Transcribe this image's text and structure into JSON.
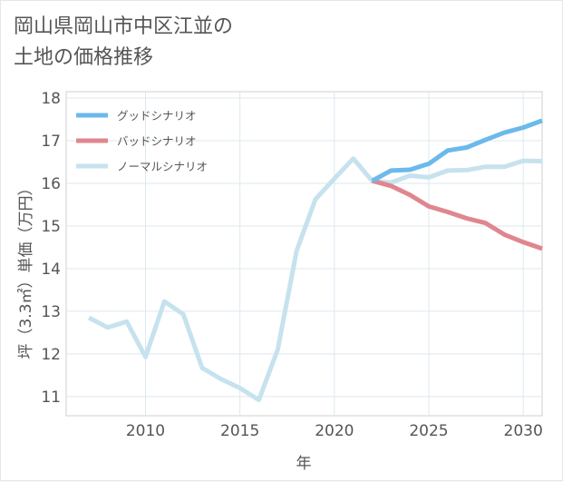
{
  "title_line1": "岡山県岡山市中区江並の",
  "title_line2": "土地の価格推移",
  "chart_data": {
    "type": "line",
    "xlabel": "年",
    "ylabel": "坪（3.3㎡）単価（万円）",
    "xlim": [
      2005.8,
      2031
    ],
    "ylim": [
      10.55,
      18.15
    ],
    "x_ticks": [
      2010,
      2015,
      2020,
      2025,
      2030
    ],
    "y_ticks": [
      11,
      12,
      13,
      14,
      15,
      16,
      17,
      18
    ],
    "grid": true,
    "legend_position": "top-left",
    "series": [
      {
        "name": "グッドシナリオ",
        "color": "#6cb9ec",
        "points": [
          [
            2022,
            16.06
          ],
          [
            2023,
            16.3
          ],
          [
            2024,
            16.32
          ],
          [
            2025,
            16.46
          ],
          [
            2026,
            16.77
          ],
          [
            2027,
            16.84
          ],
          [
            2028,
            17.02
          ],
          [
            2029,
            17.19
          ],
          [
            2030,
            17.31
          ],
          [
            2031,
            17.47
          ]
        ]
      },
      {
        "name": "バッドシナリオ",
        "color": "#e0868e",
        "points": [
          [
            2022,
            16.06
          ],
          [
            2023,
            15.94
          ],
          [
            2024,
            15.73
          ],
          [
            2025,
            15.46
          ],
          [
            2026,
            15.33
          ],
          [
            2027,
            15.18
          ],
          [
            2028,
            15.07
          ],
          [
            2029,
            14.8
          ],
          [
            2030,
            14.62
          ],
          [
            2031,
            14.47
          ]
        ]
      },
      {
        "name": "ノーマルシナリオ",
        "color": "#c6e2ee",
        "points": [
          [
            2007,
            12.85
          ],
          [
            2008,
            12.62
          ],
          [
            2009,
            12.76
          ],
          [
            2010,
            11.93
          ],
          [
            2011,
            13.23
          ],
          [
            2012,
            12.93
          ],
          [
            2013,
            11.67
          ],
          [
            2014,
            11.41
          ],
          [
            2015,
            11.2
          ],
          [
            2016,
            10.92
          ],
          [
            2017,
            12.1
          ],
          [
            2018,
            14.42
          ],
          [
            2019,
            15.63
          ],
          [
            2020,
            16.11
          ],
          [
            2021,
            16.58
          ],
          [
            2022,
            16.06
          ],
          [
            2023,
            16.02
          ],
          [
            2024,
            16.18
          ],
          [
            2025,
            16.14
          ],
          [
            2026,
            16.3
          ],
          [
            2027,
            16.31
          ],
          [
            2028,
            16.39
          ],
          [
            2029,
            16.39
          ],
          [
            2030,
            16.53
          ],
          [
            2031,
            16.52
          ]
        ]
      }
    ]
  }
}
